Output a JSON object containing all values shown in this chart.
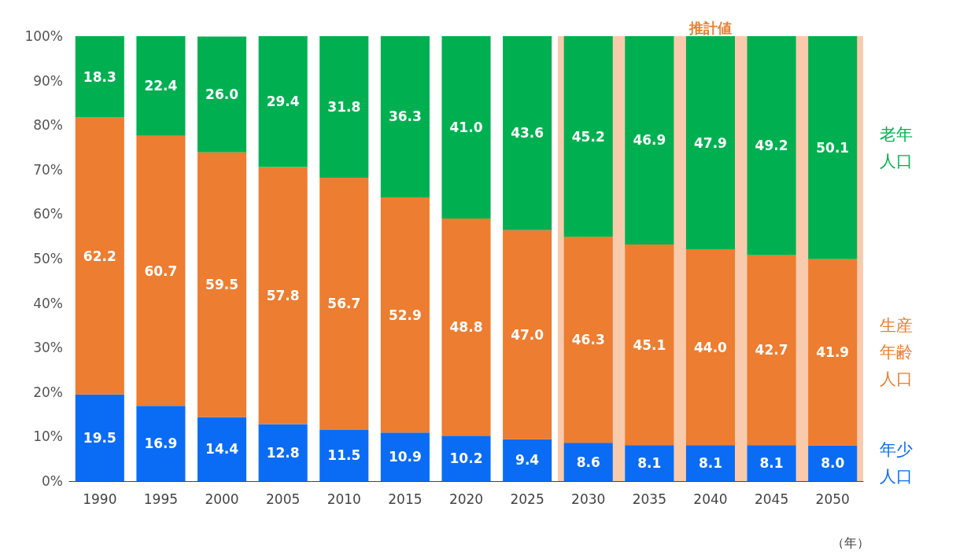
{
  "chart_data": {
    "type": "bar",
    "stacked": true,
    "xlabel": "（年）",
    "categories": [
      "1990",
      "1995",
      "2000",
      "2005",
      "2010",
      "2015",
      "2020",
      "2025",
      "2030",
      "2035",
      "2040",
      "2045",
      "2050"
    ],
    "series": [
      {
        "name": "年少人口",
        "color": "#0a6cf5",
        "values": [
          19.5,
          16.9,
          14.4,
          12.8,
          11.5,
          10.9,
          10.2,
          9.4,
          8.6,
          8.1,
          8.1,
          8.1,
          8.0
        ],
        "value_labels": [
          "19.5",
          "16.9",
          "14.4",
          "12.8",
          "11.5",
          "10.9",
          "10.2",
          "9.4",
          "8.6",
          "8.1",
          "8.1",
          "8.1",
          "8.0"
        ]
      },
      {
        "name": "生産年齢人口",
        "color": "#ed7d31",
        "values": [
          62.2,
          60.7,
          59.5,
          57.8,
          56.7,
          52.9,
          48.8,
          47.0,
          46.3,
          45.1,
          44.0,
          42.7,
          41.9
        ],
        "value_labels": [
          "62.2",
          "60.7",
          "59.5",
          "57.8",
          "56.7",
          "52.9",
          "48.8",
          "47.0",
          "46.3",
          "45.1",
          "44.0",
          "42.7",
          "41.9"
        ]
      },
      {
        "name": "老年人口",
        "color": "#00b050",
        "values": [
          18.3,
          22.4,
          26.0,
          29.4,
          31.8,
          36.3,
          41.0,
          43.6,
          45.2,
          46.9,
          47.9,
          49.2,
          50.1
        ],
        "value_labels": [
          "18.3",
          "22.4",
          "26.0",
          "29.4",
          "31.8",
          "36.3",
          "41.0",
          "43.6",
          "45.2",
          "46.9",
          "47.9",
          "49.2",
          "50.1"
        ]
      }
    ],
    "ylim": [
      0,
      100
    ],
    "yticks": [
      {
        "value": 0,
        "label": "0%"
      },
      {
        "value": 10,
        "label": "10%"
      },
      {
        "value": 20,
        "label": "20%"
      },
      {
        "value": 30,
        "label": "30%"
      },
      {
        "value": 40,
        "label": "40%"
      },
      {
        "value": 50,
        "label": "50%"
      },
      {
        "value": 60,
        "label": "60%"
      },
      {
        "value": 70,
        "label": "70%"
      },
      {
        "value": 80,
        "label": "80%"
      },
      {
        "value": 90,
        "label": "90%"
      },
      {
        "value": 100,
        "label": "100%"
      }
    ],
    "bands": [
      {
        "axis": "x",
        "from": "2030",
        "to": "2050",
        "label": "推計値",
        "color": "#f8cbad"
      }
    ],
    "grid": false,
    "legend": false
  }
}
